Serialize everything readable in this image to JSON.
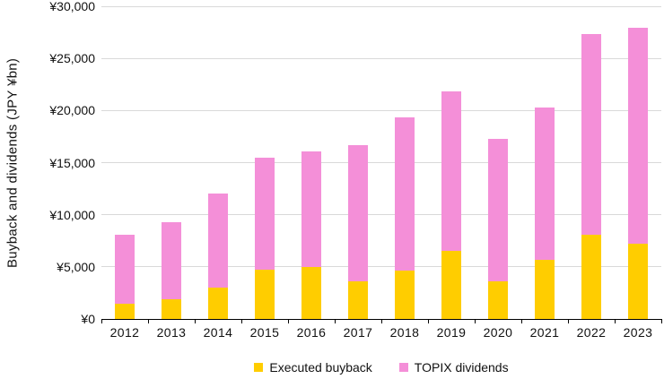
{
  "chart_data": {
    "type": "bar",
    "stacked": true,
    "title": "",
    "xlabel": "",
    "ylabel": "Buyback and dividends (JPY ¥bn)",
    "categories": [
      "2012",
      "2013",
      "2014",
      "2015",
      "2016",
      "2017",
      "2018",
      "2019",
      "2020",
      "2021",
      "2022",
      "2023"
    ],
    "series": [
      {
        "name": "Executed buyback",
        "color": "#FFCD00",
        "values": [
          1450,
          1900,
          3050,
          4700,
          5000,
          3650,
          4650,
          6550,
          3650,
          5650,
          8050,
          7250
        ]
      },
      {
        "name": "TOPIX dividends",
        "color": "#F48FD8",
        "values": [
          6600,
          7400,
          8950,
          10750,
          11100,
          13000,
          14700,
          15250,
          13600,
          14600,
          19300,
          20650
        ]
      }
    ],
    "totals": [
      8050,
      9300,
      12000,
      15450,
      16100,
      16650,
      19350,
      21800,
      17250,
      20250,
      27350,
      27900
    ],
    "ylim": [
      0,
      30000
    ],
    "ytick_step": 5000,
    "ytick_labels": [
      "¥0",
      "¥5,000",
      "¥10,000",
      "¥15,000",
      "¥20,000",
      "¥25,000",
      "¥30,000"
    ],
    "grid": true,
    "legend_position": "bottom"
  },
  "colors": {
    "gridline": "#d9d9d9",
    "axis": "#000000",
    "text": "#111111",
    "background": "#ffffff"
  }
}
